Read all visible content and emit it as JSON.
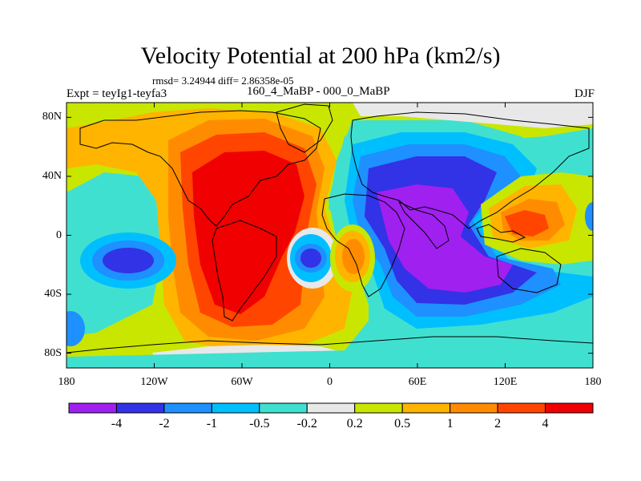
{
  "figure": {
    "title": "Velocity Potential at 200 hPa (km2/s)",
    "stats": "rmsd= 3.24944 diff= 2.86358e-05",
    "experiment": "Expt = teyIg1-teyfa3",
    "period": "160_4_MaBP - 000_0_MaBP",
    "season": "DJF"
  },
  "axes": {
    "lat_labels": [
      "80N",
      "40N",
      "0",
      "40S",
      "80S"
    ],
    "lat_values": [
      80,
      40,
      0,
      -40,
      -80
    ],
    "lon_labels": [
      "180",
      "120W",
      "60W",
      "0",
      "60E",
      "120E",
      "180"
    ],
    "lon_values": [
      -180,
      -120,
      -60,
      0,
      60,
      120,
      180
    ]
  },
  "colorbar": {
    "levels": [
      "-4",
      "-2",
      "-1",
      "-0.5",
      "-0.2",
      "0.2",
      "0.5",
      "1",
      "2",
      "4"
    ],
    "colors": [
      "#a020f0",
      "#3232e6",
      "#1e90ff",
      "#00bfff",
      "#40e0d0",
      "#e8e8e8",
      "#c8e600",
      "#ffb400",
      "#ff8c00",
      "#ff4500",
      "#f00000"
    ]
  },
  "map_fields": [
    {
      "name": "central-pacific-americas-positive-cell",
      "lon": -55,
      "lat": 15,
      "rx": 55,
      "ry": 70,
      "level": 2
    },
    {
      "name": "americas-positive-core",
      "lon": -55,
      "lat": 10,
      "rx": 40,
      "ry": 55,
      "level": 4
    },
    {
      "name": "indian-ocean-negative-cell",
      "lon": 70,
      "lat": 5,
      "rx": 55,
      "ry": 55,
      "level": -2
    },
    {
      "name": "indian-ocean-negative-core",
      "lon": 80,
      "lat": 0,
      "rx": 40,
      "ry": 40,
      "level": -4
    },
    {
      "name": "west-pacific-positive-cell",
      "lon": 128,
      "lat": 8,
      "rx": 35,
      "ry": 22,
      "level": 2
    },
    {
      "name": "atlantic-negative-cell",
      "lon": -5,
      "lat": -13,
      "rx": 12,
      "ry": 12,
      "level": -2
    },
    {
      "name": "africa-positive-cell",
      "lon": 15,
      "lat": -10,
      "rx": 12,
      "ry": 18,
      "level": 1
    },
    {
      "name": "east-pacific-negative-cell",
      "lon": -140,
      "lat": -13,
      "rx": 25,
      "ry": 18,
      "level": -2
    }
  ]
}
